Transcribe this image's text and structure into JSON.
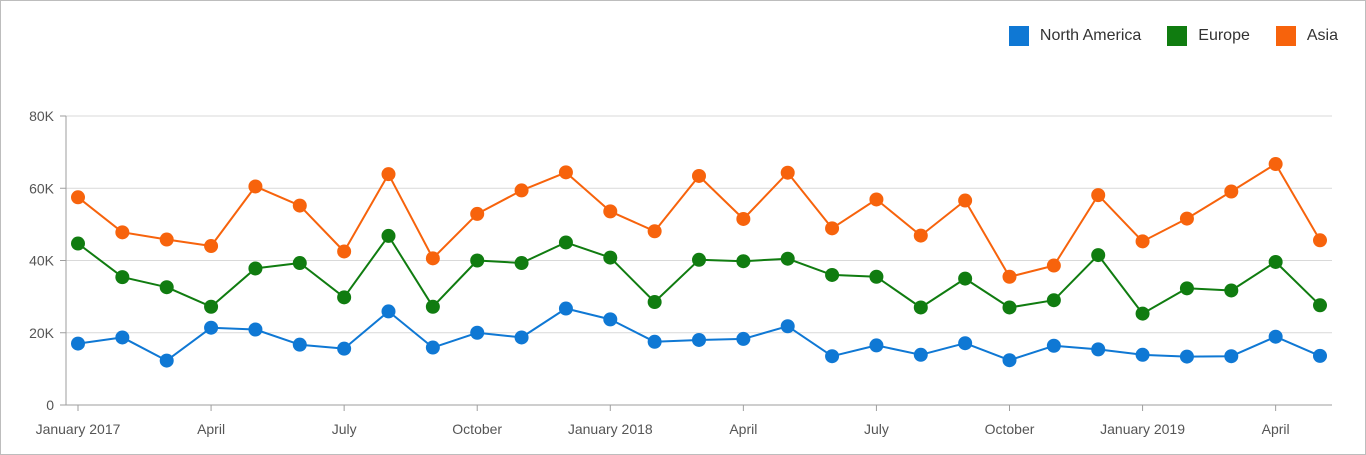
{
  "chart_data": {
    "type": "line",
    "title": "",
    "xlabel": "",
    "ylabel": "",
    "ylim": [
      0,
      80000
    ],
    "y_ticks": [
      0,
      20000,
      40000,
      60000,
      80000
    ],
    "y_tick_labels": [
      "0",
      "20K",
      "40K",
      "60K",
      "80K"
    ],
    "x_tick_labels": [
      {
        "index": 0,
        "label": "January 2017"
      },
      {
        "index": 3,
        "label": "April"
      },
      {
        "index": 6,
        "label": "July"
      },
      {
        "index": 9,
        "label": "October"
      },
      {
        "index": 12,
        "label": "January 2018"
      },
      {
        "index": 15,
        "label": "April"
      },
      {
        "index": 18,
        "label": "July"
      },
      {
        "index": 21,
        "label": "October"
      },
      {
        "index": 24,
        "label": "January 2019"
      },
      {
        "index": 27,
        "label": "April"
      }
    ],
    "categories": [
      "2017-01",
      "2017-02",
      "2017-03",
      "2017-04",
      "2017-05",
      "2017-06",
      "2017-07",
      "2017-08",
      "2017-09",
      "2017-10",
      "2017-11",
      "2017-12",
      "2018-01",
      "2018-02",
      "2018-03",
      "2018-04",
      "2018-05",
      "2018-06",
      "2018-07",
      "2018-08",
      "2018-09",
      "2018-10",
      "2018-11",
      "2018-12",
      "2019-01",
      "2019-02",
      "2019-03",
      "2019-04",
      "2019-05"
    ],
    "legend_position": "top-right",
    "grid": true,
    "series": [
      {
        "name": "North America",
        "color": "#0f78d4",
        "values": [
          17000,
          18700,
          12300,
          21400,
          20900,
          16700,
          15600,
          25900,
          15900,
          20000,
          18700,
          26700,
          23700,
          17500,
          18000,
          18300,
          21800,
          13500,
          16500,
          13900,
          17100,
          12400,
          16400,
          15400,
          13900,
          13400,
          13500,
          18900,
          13600
        ]
      },
      {
        "name": "Europe",
        "color": "#107c10",
        "values": [
          44700,
          35400,
          32600,
          27200,
          37800,
          39300,
          29800,
          46800,
          27200,
          40000,
          39300,
          45000,
          40800,
          28500,
          40200,
          39800,
          40500,
          36000,
          35500,
          27000,
          35000,
          27000,
          29000,
          41500,
          25300,
          32300,
          31700,
          39600,
          27600
        ]
      },
      {
        "name": "Asia",
        "color": "#f7630c",
        "values": [
          57500,
          47800,
          45800,
          44000,
          60500,
          55200,
          42500,
          63900,
          40600,
          52900,
          59400,
          64400,
          53600,
          48100,
          63400,
          51500,
          64300,
          48900,
          56900,
          46900,
          56600,
          35500,
          38600,
          58100,
          45300,
          51600,
          59100,
          66700,
          45600
        ]
      }
    ]
  }
}
